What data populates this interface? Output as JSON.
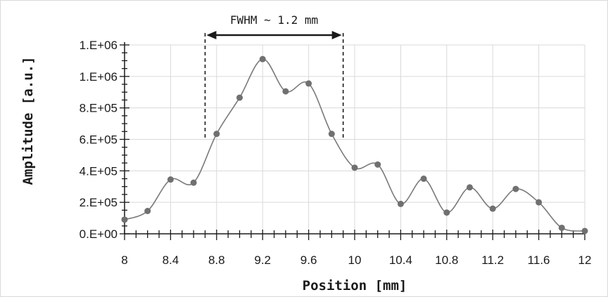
{
  "chart_data": {
    "type": "scatter",
    "title": "",
    "xlabel": "Position [mm]",
    "ylabel": "Amplitude [a.u.]",
    "xlim": [
      8,
      12
    ],
    "ylim": [
      0,
      1200000
    ],
    "x_ticks": [
      8,
      8.4,
      8.8,
      9.2,
      9.6,
      10,
      10.4,
      10.8,
      11.2,
      11.6,
      12
    ],
    "x_tick_labels": [
      "8",
      "8.4",
      "8.8",
      "9.2",
      "9.6",
      "10",
      "10.4",
      "10.8",
      "11.2",
      "11.6",
      "12"
    ],
    "x_minor_step": 0.1,
    "y_ticks": [
      0,
      200000,
      400000,
      600000,
      800000,
      1000000,
      1200000
    ],
    "y_tick_labels": [
      "0.E+00",
      "2.E+05",
      "4.E+05",
      "6.E+05",
      "8.E+05",
      "1.E+06",
      "1.E+06"
    ],
    "y_minor_step": 50000,
    "grid": true,
    "smoothed_line": true,
    "series": [
      {
        "x": [
          8.0,
          8.2,
          8.4,
          8.6,
          8.8,
          9.0,
          9.2,
          9.4,
          9.6,
          9.8,
          10.0,
          10.2,
          10.4,
          10.6,
          10.8,
          11.0,
          11.2,
          11.4,
          11.6,
          11.8,
          12.0
        ],
        "y": [
          90000,
          145000,
          345000,
          325000,
          635000,
          865000,
          1110000,
          905000,
          955000,
          635000,
          420000,
          440000,
          190000,
          350000,
          135000,
          295000,
          160000,
          285000,
          200000,
          38000,
          18000
        ],
        "color": "#7a7a7a",
        "marker_color": "#707070"
      }
    ],
    "annotation": {
      "text": "FWHM ~ 1.2 mm",
      "x_start": 8.7,
      "x_end": 9.9,
      "y_line_bottom": 600000
    }
  }
}
